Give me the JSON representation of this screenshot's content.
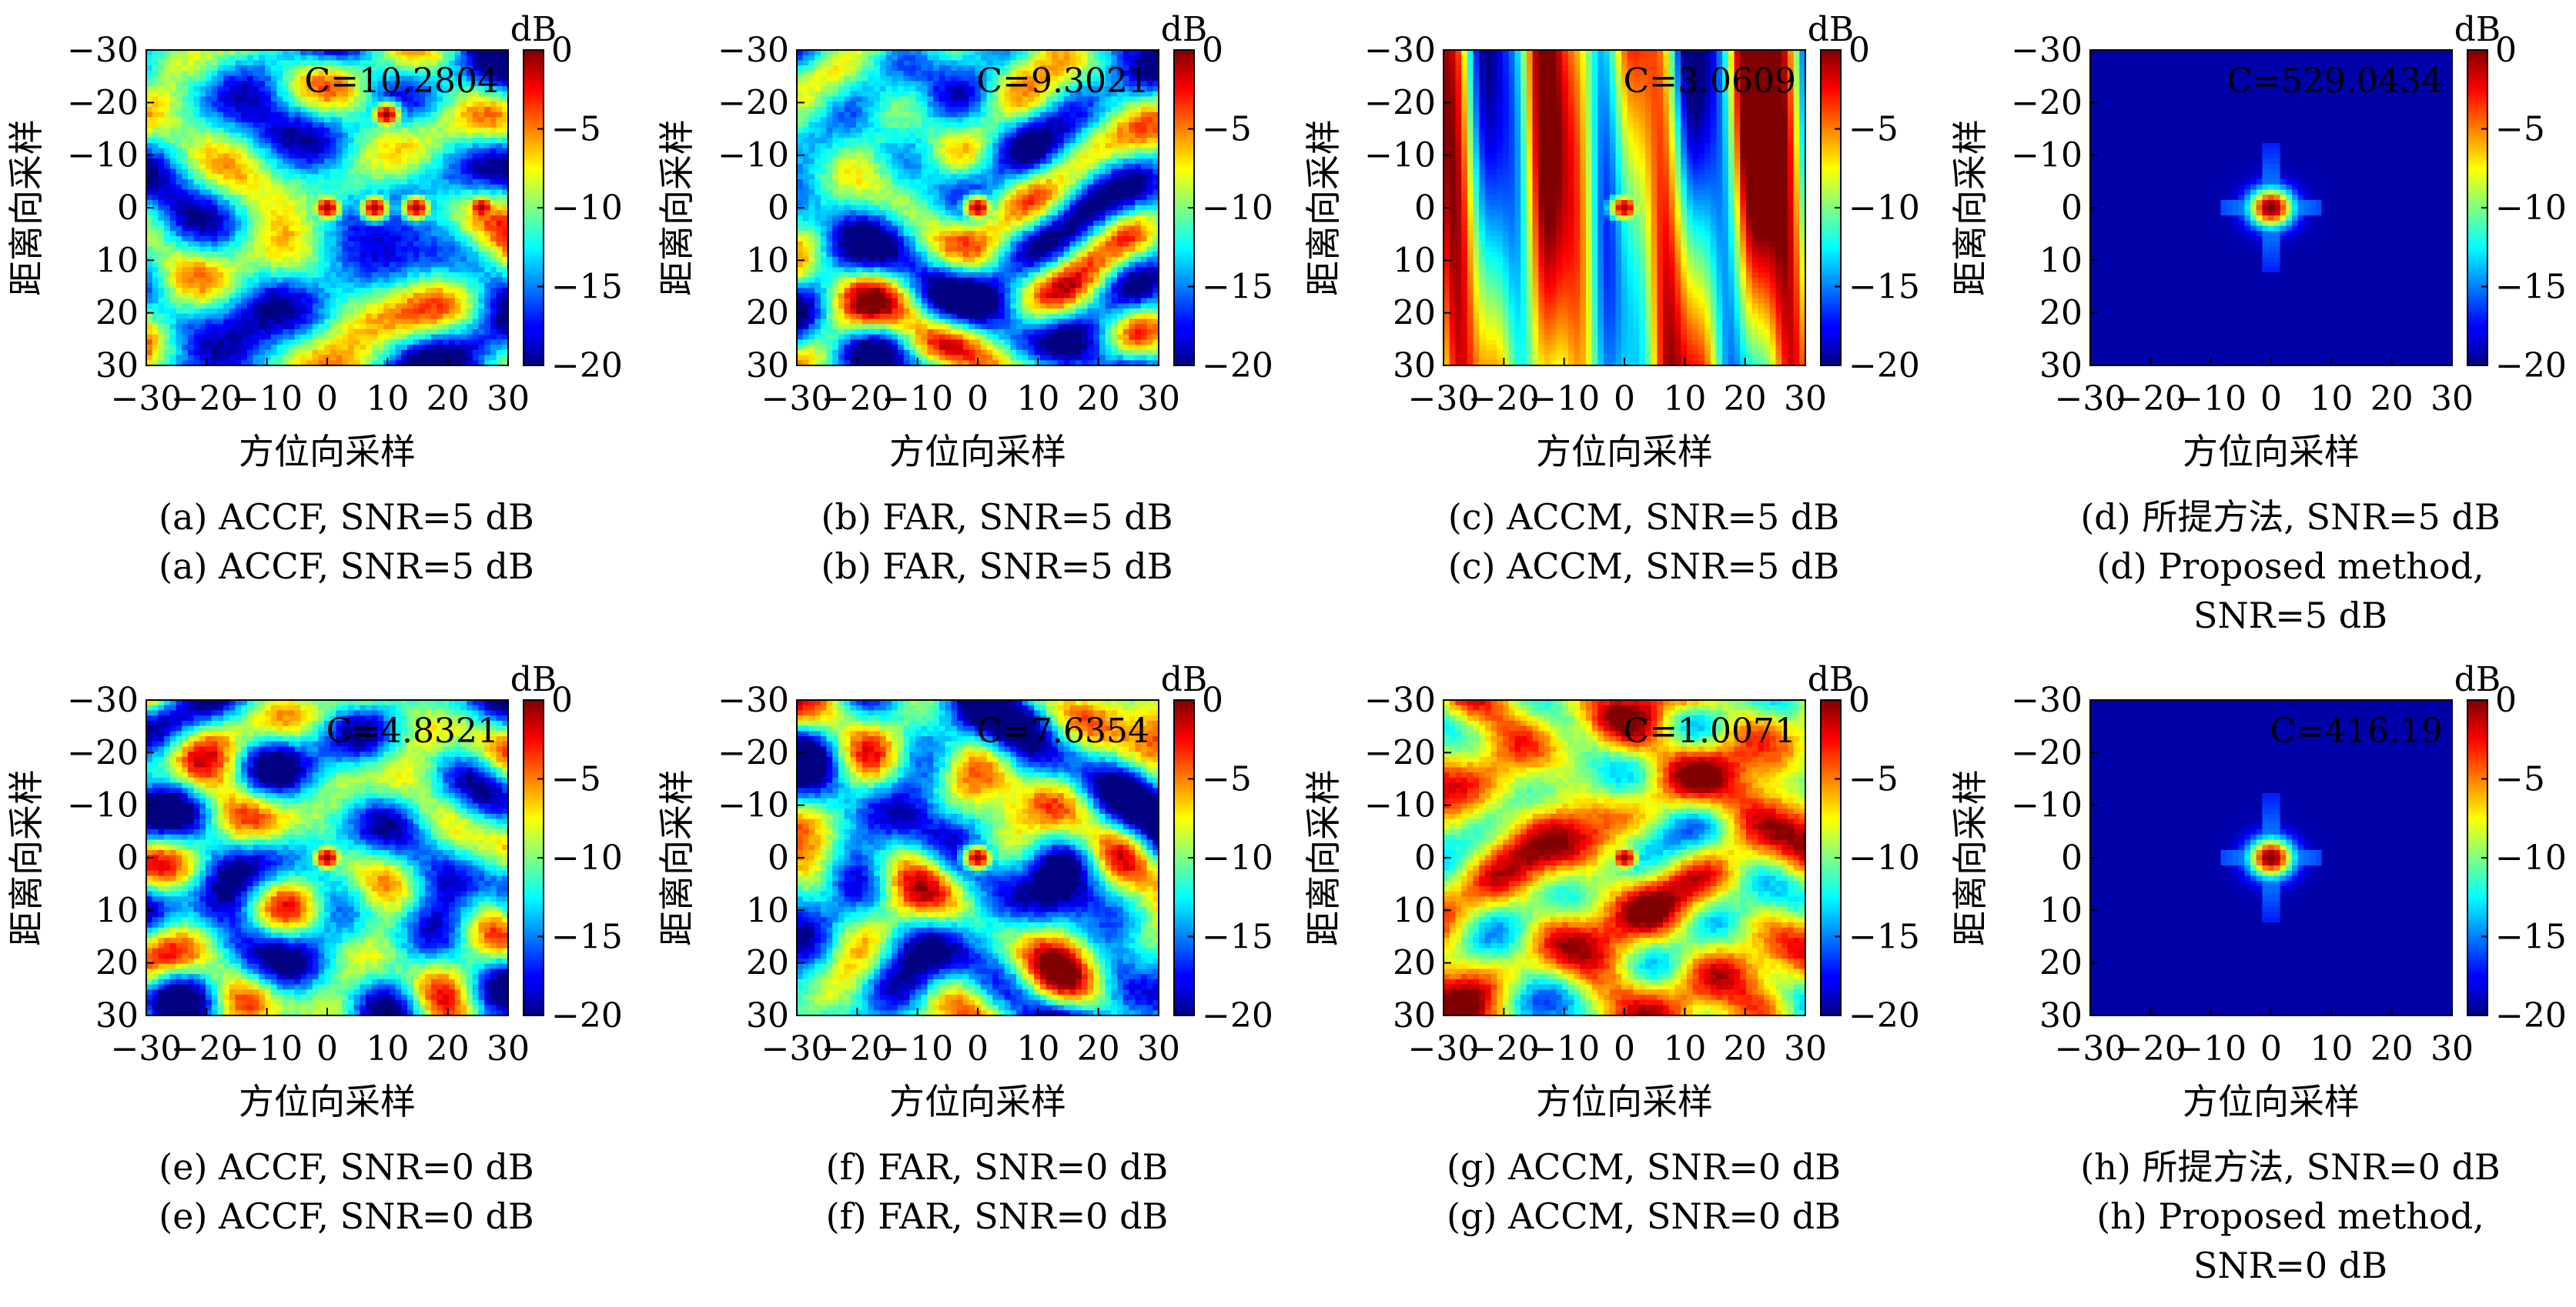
{
  "colors": {
    "colormap": "jet",
    "annotation": "#d00000",
    "axis": "#000000",
    "background": "#ffffff"
  },
  "chart_data": [
    {
      "type": "heatmap",
      "panel": "a",
      "field": "random",
      "snr": 5,
      "annotation": "C=10.2804",
      "xlabel": "方位向采样",
      "ylabel": "距离向采样",
      "colorbar_label": "dB",
      "xlim": [
        -30,
        30
      ],
      "ylim": [
        -30,
        30
      ],
      "clim": [
        -20,
        0
      ],
      "xticks": [
        "−30",
        "−20",
        "−10",
        "0",
        "10",
        "20",
        "30"
      ],
      "yticks": [
        "−30",
        "−20",
        "−10",
        "0",
        "10",
        "20",
        "30"
      ],
      "cticks": [
        "0",
        "−5",
        "−10",
        "−15",
        "−20"
      ],
      "peaks": [
        {
          "x": 0,
          "y": 0
        },
        {
          "x": 8,
          "y": 0
        },
        {
          "x": 15,
          "y": 0
        },
        {
          "x": 26,
          "y": 0
        },
        {
          "x": 10,
          "y": -18
        }
      ],
      "caption": [
        "(a) ACCF, SNR=5 dB",
        "(a) ACCF, SNR=5 dB"
      ]
    },
    {
      "type": "heatmap",
      "panel": "b",
      "field": "random",
      "snr": 5,
      "annotation": "C=9.3021",
      "xlabel": "方位向采样",
      "ylabel": "距离向采样",
      "colorbar_label": "dB",
      "xlim": [
        -30,
        30
      ],
      "ylim": [
        -30,
        30
      ],
      "clim": [
        -20,
        0
      ],
      "xticks": [
        "−30",
        "−20",
        "−10",
        "0",
        "10",
        "20",
        "30"
      ],
      "yticks": [
        "−30",
        "−20",
        "−10",
        "0",
        "10",
        "20",
        "30"
      ],
      "cticks": [
        "0",
        "−5",
        "−10",
        "−15",
        "−20"
      ],
      "peaks": [
        {
          "x": 0,
          "y": 0
        }
      ],
      "caption": [
        "(b) FAR, SNR=5 dB",
        "(b) FAR, SNR=5 dB"
      ]
    },
    {
      "type": "heatmap",
      "panel": "c",
      "field": "stripes",
      "snr": 5,
      "annotation": "C=3.0609",
      "xlabel": "方位向采样",
      "ylabel": "距离向采样",
      "colorbar_label": "dB",
      "xlim": [
        -30,
        30
      ],
      "ylim": [
        -30,
        30
      ],
      "clim": [
        -20,
        0
      ],
      "xticks": [
        "−30",
        "−20",
        "−10",
        "0",
        "10",
        "20",
        "30"
      ],
      "yticks": [
        "−30",
        "−20",
        "−10",
        "0",
        "10",
        "20",
        "30"
      ],
      "cticks": [
        "0",
        "−5",
        "−10",
        "−15",
        "−20"
      ],
      "peaks": [
        {
          "x": 0,
          "y": 0
        }
      ],
      "caption": [
        "(c) ACCM, SNR=5 dB",
        "(c) ACCM, SNR=5 dB"
      ]
    },
    {
      "type": "heatmap",
      "panel": "d",
      "field": "focused",
      "snr": 5,
      "annotation": "C=529.0434",
      "xlabel": "方位向采样",
      "ylabel": "距离向采样",
      "colorbar_label": "dB",
      "xlim": [
        -30,
        30
      ],
      "ylim": [
        -30,
        30
      ],
      "clim": [
        -20,
        0
      ],
      "xticks": [
        "−30",
        "−20",
        "−10",
        "0",
        "10",
        "20",
        "30"
      ],
      "yticks": [
        "−30",
        "−20",
        "−10",
        "0",
        "10",
        "20",
        "30"
      ],
      "cticks": [
        "0",
        "−5",
        "−10",
        "−15",
        "−20"
      ],
      "peaks": [
        {
          "x": 0,
          "y": 0
        }
      ],
      "caption": [
        "(d) 所提方法, SNR=5 dB",
        "(d) Proposed method,",
        "SNR=5 dB"
      ]
    },
    {
      "type": "heatmap",
      "panel": "e",
      "field": "random",
      "snr": 0,
      "annotation": "C=4.8321",
      "xlabel": "方位向采样",
      "ylabel": "距离向采样",
      "colorbar_label": "dB",
      "xlim": [
        -30,
        30
      ],
      "ylim": [
        -30,
        30
      ],
      "clim": [
        -20,
        0
      ],
      "xticks": [
        "−30",
        "−20",
        "−10",
        "0",
        "10",
        "20",
        "30"
      ],
      "yticks": [
        "−30",
        "−20",
        "−10",
        "0",
        "10",
        "20",
        "30"
      ],
      "cticks": [
        "0",
        "−5",
        "−10",
        "−15",
        "−20"
      ],
      "peaks": [
        {
          "x": 0,
          "y": 0
        }
      ],
      "caption": [
        "(e) ACCF, SNR=0 dB",
        "(e)  ACCF, SNR=0 dB"
      ]
    },
    {
      "type": "heatmap",
      "panel": "f",
      "field": "random",
      "snr": 0,
      "annotation": "C=7.6354",
      "xlabel": "方位向采样",
      "ylabel": "距离向采样",
      "colorbar_label": "dB",
      "xlim": [
        -30,
        30
      ],
      "ylim": [
        -30,
        30
      ],
      "clim": [
        -20,
        0
      ],
      "xticks": [
        "−30",
        "−20",
        "−10",
        "0",
        "10",
        "20",
        "30"
      ],
      "yticks": [
        "−30",
        "−20",
        "−10",
        "0",
        "10",
        "20",
        "30"
      ],
      "cticks": [
        "0",
        "−5",
        "−10",
        "−15",
        "−20"
      ],
      "peaks": [
        {
          "x": 0,
          "y": 0
        }
      ],
      "caption": [
        "(f) FAR, SNR=0 dB",
        "(f) FAR, SNR=0 dB"
      ]
    },
    {
      "type": "heatmap",
      "panel": "g",
      "field": "warm",
      "snr": 0,
      "annotation": "C=1.0071",
      "xlabel": "方位向采样",
      "ylabel": "距离向采样",
      "colorbar_label": "dB",
      "xlim": [
        -30,
        30
      ],
      "ylim": [
        -30,
        30
      ],
      "clim": [
        -20,
        0
      ],
      "xticks": [
        "−30",
        "−20",
        "−10",
        "0",
        "10",
        "20",
        "30"
      ],
      "yticks": [
        "−30",
        "−20",
        "−10",
        "0",
        "10",
        "20",
        "30"
      ],
      "cticks": [
        "0",
        "−5",
        "−10",
        "−15",
        "−20"
      ],
      "peaks": [
        {
          "x": 0,
          "y": 0
        }
      ],
      "caption": [
        "(g) ACCM, SNR=0 dB",
        "(g) ACCM, SNR=0 dB"
      ]
    },
    {
      "type": "heatmap",
      "panel": "h",
      "field": "focused",
      "snr": 0,
      "annotation": "C=416.19",
      "xlabel": "方位向采样",
      "ylabel": "距离向采样",
      "colorbar_label": "dB",
      "xlim": [
        -30,
        30
      ],
      "ylim": [
        -30,
        30
      ],
      "clim": [
        -20,
        0
      ],
      "xticks": [
        "−30",
        "−20",
        "−10",
        "0",
        "10",
        "20",
        "30"
      ],
      "yticks": [
        "−30",
        "−20",
        "−10",
        "0",
        "10",
        "20",
        "30"
      ],
      "cticks": [
        "0",
        "−5",
        "−10",
        "−15",
        "−20"
      ],
      "peaks": [
        {
          "x": 0,
          "y": 0
        }
      ],
      "caption": [
        "(h) 所提方法, SNR=0 dB",
        "(h) Proposed method,",
        "SNR=0 dB"
      ]
    }
  ]
}
